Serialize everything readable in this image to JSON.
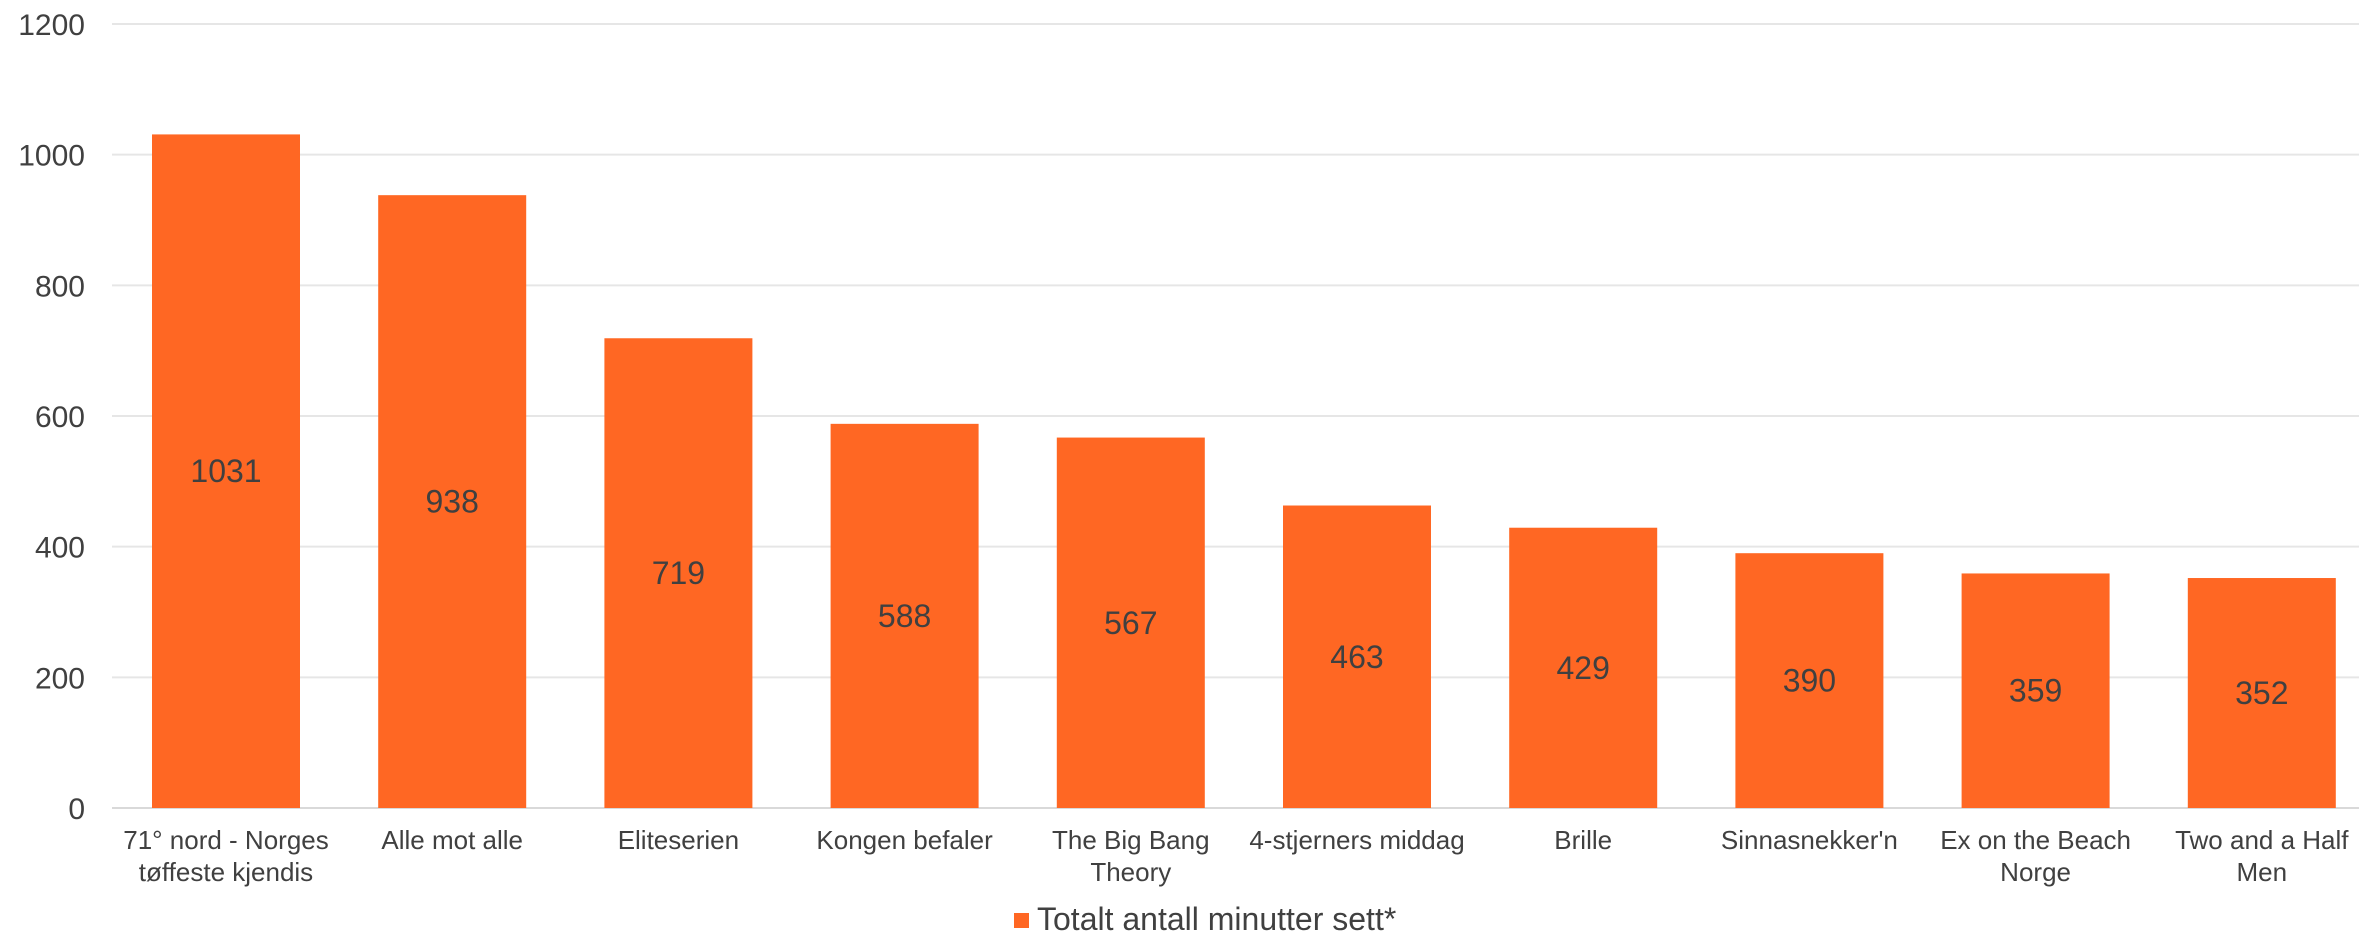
{
  "chart_data": {
    "type": "bar",
    "categories": [
      "71° nord - Norges tøffeste kjendis",
      "Alle mot alle",
      "Eliteserien",
      "Kongen befaler",
      "The Big Bang Theory",
      "4-stjerners middag",
      "Brille",
      "Sinnasnekker'n",
      "Ex on the Beach Norge",
      "Two and a Half Men"
    ],
    "category_lines": [
      [
        "71° nord - Norges",
        "tøffeste kjendis"
      ],
      [
        "Alle mot alle"
      ],
      [
        "Eliteserien"
      ],
      [
        "Kongen befaler"
      ],
      [
        "The Big Bang",
        "Theory"
      ],
      [
        "4-stjerners middag"
      ],
      [
        "Brille"
      ],
      [
        "Sinnasnekker'n"
      ],
      [
        "Ex on the Beach",
        "Norge"
      ],
      [
        "Two and a Half",
        "Men"
      ]
    ],
    "series": [
      {
        "name": "Totalt antall minutter sett*",
        "values": [
          1031,
          938,
          719,
          588,
          567,
          463,
          429,
          390,
          359,
          352
        ]
      }
    ],
    "data_labels": [
      "1031",
      "938",
      "719",
      "588",
      "567",
      "463",
      "429",
      "390",
      "359",
      "352"
    ],
    "yticks": [
      "0",
      "200",
      "400",
      "600",
      "800",
      "1000",
      "1200"
    ],
    "ylim": [
      0,
      1200
    ],
    "grid": true,
    "legend_position": "bottom",
    "bar_color": "#FF6723",
    "text_color": "#404040",
    "grid_color": "#E6E6E6"
  }
}
